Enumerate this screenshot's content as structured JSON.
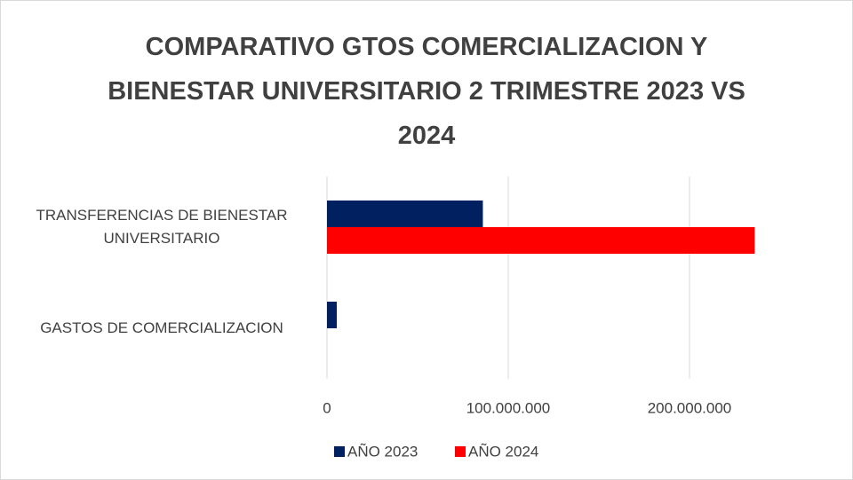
{
  "chart_data": {
    "type": "bar",
    "orientation": "horizontal",
    "title": "COMPARATIVO GTOS COMERCIALIZACION Y BIENESTAR UNIVERSITARIO 2 TRIMESTRE 2023 VS 2024",
    "categories": [
      "GASTOS DE COMERCIALIZACION",
      "TRANSFERENCIAS DE BIENESTAR UNIVERSITARIO"
    ],
    "series": [
      {
        "name": "AÑO 2023",
        "color": "#002060",
        "values": [
          5400000,
          86000000
        ]
      },
      {
        "name": "AÑO 2024",
        "color": "#ff0000",
        "values": [
          0,
          236000000
        ]
      }
    ],
    "xlim": [
      0,
      250000000
    ],
    "xticks": [
      0,
      {
        "value": 100000000,
        "label": "100.000.000"
      },
      {
        "value": 200000000,
        "label": "200.000.000"
      }
    ],
    "grid": true,
    "legend": "bottom"
  }
}
